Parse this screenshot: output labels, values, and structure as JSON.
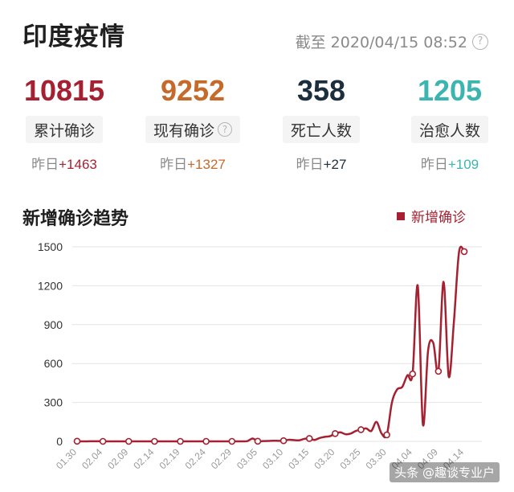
{
  "header": {
    "title": "印度疫情",
    "updated": "截至 2020/04/15 08:52"
  },
  "stats": [
    {
      "value": "10815",
      "label": "累计确诊",
      "delta_prefix": "昨日",
      "delta": "+1463",
      "color": "#a52131",
      "has_help": false
    },
    {
      "value": "9252",
      "label": "现有确诊",
      "delta_prefix": "昨日",
      "delta": "+1327",
      "color": "#c56a2a",
      "has_help": true
    },
    {
      "value": "358",
      "label": "死亡人数",
      "delta_prefix": "昨日",
      "delta": "+27",
      "color": "#1d2e3d",
      "has_help": false
    },
    {
      "value": "1205",
      "label": "治愈人数",
      "delta_prefix": "昨日",
      "delta": "+109",
      "color": "#3cb4b0",
      "has_help": false
    }
  ],
  "chart_title": "新增确诊趋势",
  "watermark": "头条 @趣谈专业户",
  "chart_data": {
    "type": "line",
    "legend": [
      "新增确诊"
    ],
    "legend_position": "top-right",
    "line_color": "#a52131",
    "grid": true,
    "ylim": [
      0,
      1500
    ],
    "y_ticks": [
      0,
      300,
      600,
      900,
      1200,
      1500
    ],
    "x_tick_labels": [
      "01.30",
      "02.04",
      "02.09",
      "02.14",
      "02.19",
      "02.24",
      "02.29",
      "03.05",
      "03.10",
      "03.15",
      "03.20",
      "03.25",
      "03.30",
      "04.04",
      "04.09",
      "04.14"
    ],
    "series": [
      {
        "name": "新增确诊",
        "x": [
          "01.30",
          "01.31",
          "02.01",
          "02.02",
          "02.03",
          "02.04",
          "02.05",
          "02.06",
          "02.07",
          "02.08",
          "02.09",
          "02.10",
          "02.11",
          "02.12",
          "02.13",
          "02.14",
          "02.15",
          "02.16",
          "02.17",
          "02.18",
          "02.19",
          "02.20",
          "02.21",
          "02.22",
          "02.23",
          "02.24",
          "02.25",
          "02.26",
          "02.27",
          "02.28",
          "02.29",
          "03.01",
          "03.02",
          "03.03",
          "03.04",
          "03.05",
          "03.06",
          "03.07",
          "03.08",
          "03.09",
          "03.10",
          "03.11",
          "03.12",
          "03.13",
          "03.14",
          "03.15",
          "03.16",
          "03.17",
          "03.18",
          "03.19",
          "03.20",
          "03.21",
          "03.22",
          "03.23",
          "03.24",
          "03.25",
          "03.26",
          "03.27",
          "03.28",
          "03.29",
          "03.30",
          "03.31",
          "04.01",
          "04.02",
          "04.03",
          "04.04",
          "04.05",
          "04.06",
          "04.07",
          "04.08",
          "04.09",
          "04.10",
          "04.11",
          "04.12",
          "04.13",
          "04.14"
        ],
        "values": [
          1,
          0,
          0,
          1,
          1,
          0,
          0,
          0,
          0,
          0,
          0,
          0,
          0,
          0,
          0,
          0,
          0,
          0,
          0,
          0,
          0,
          0,
          0,
          0,
          0,
          0,
          0,
          0,
          0,
          0,
          0,
          0,
          0,
          2,
          22,
          1,
          2,
          3,
          5,
          4,
          5,
          12,
          10,
          8,
          19,
          22,
          11,
          26,
          35,
          40,
          60,
          70,
          55,
          60,
          80,
          90,
          100,
          80,
          150,
          60,
          50,
          300,
          400,
          420,
          510,
          520,
          1200,
          130,
          700,
          760,
          540,
          1230,
          500,
          920,
          1460,
          1463
        ]
      }
    ]
  }
}
